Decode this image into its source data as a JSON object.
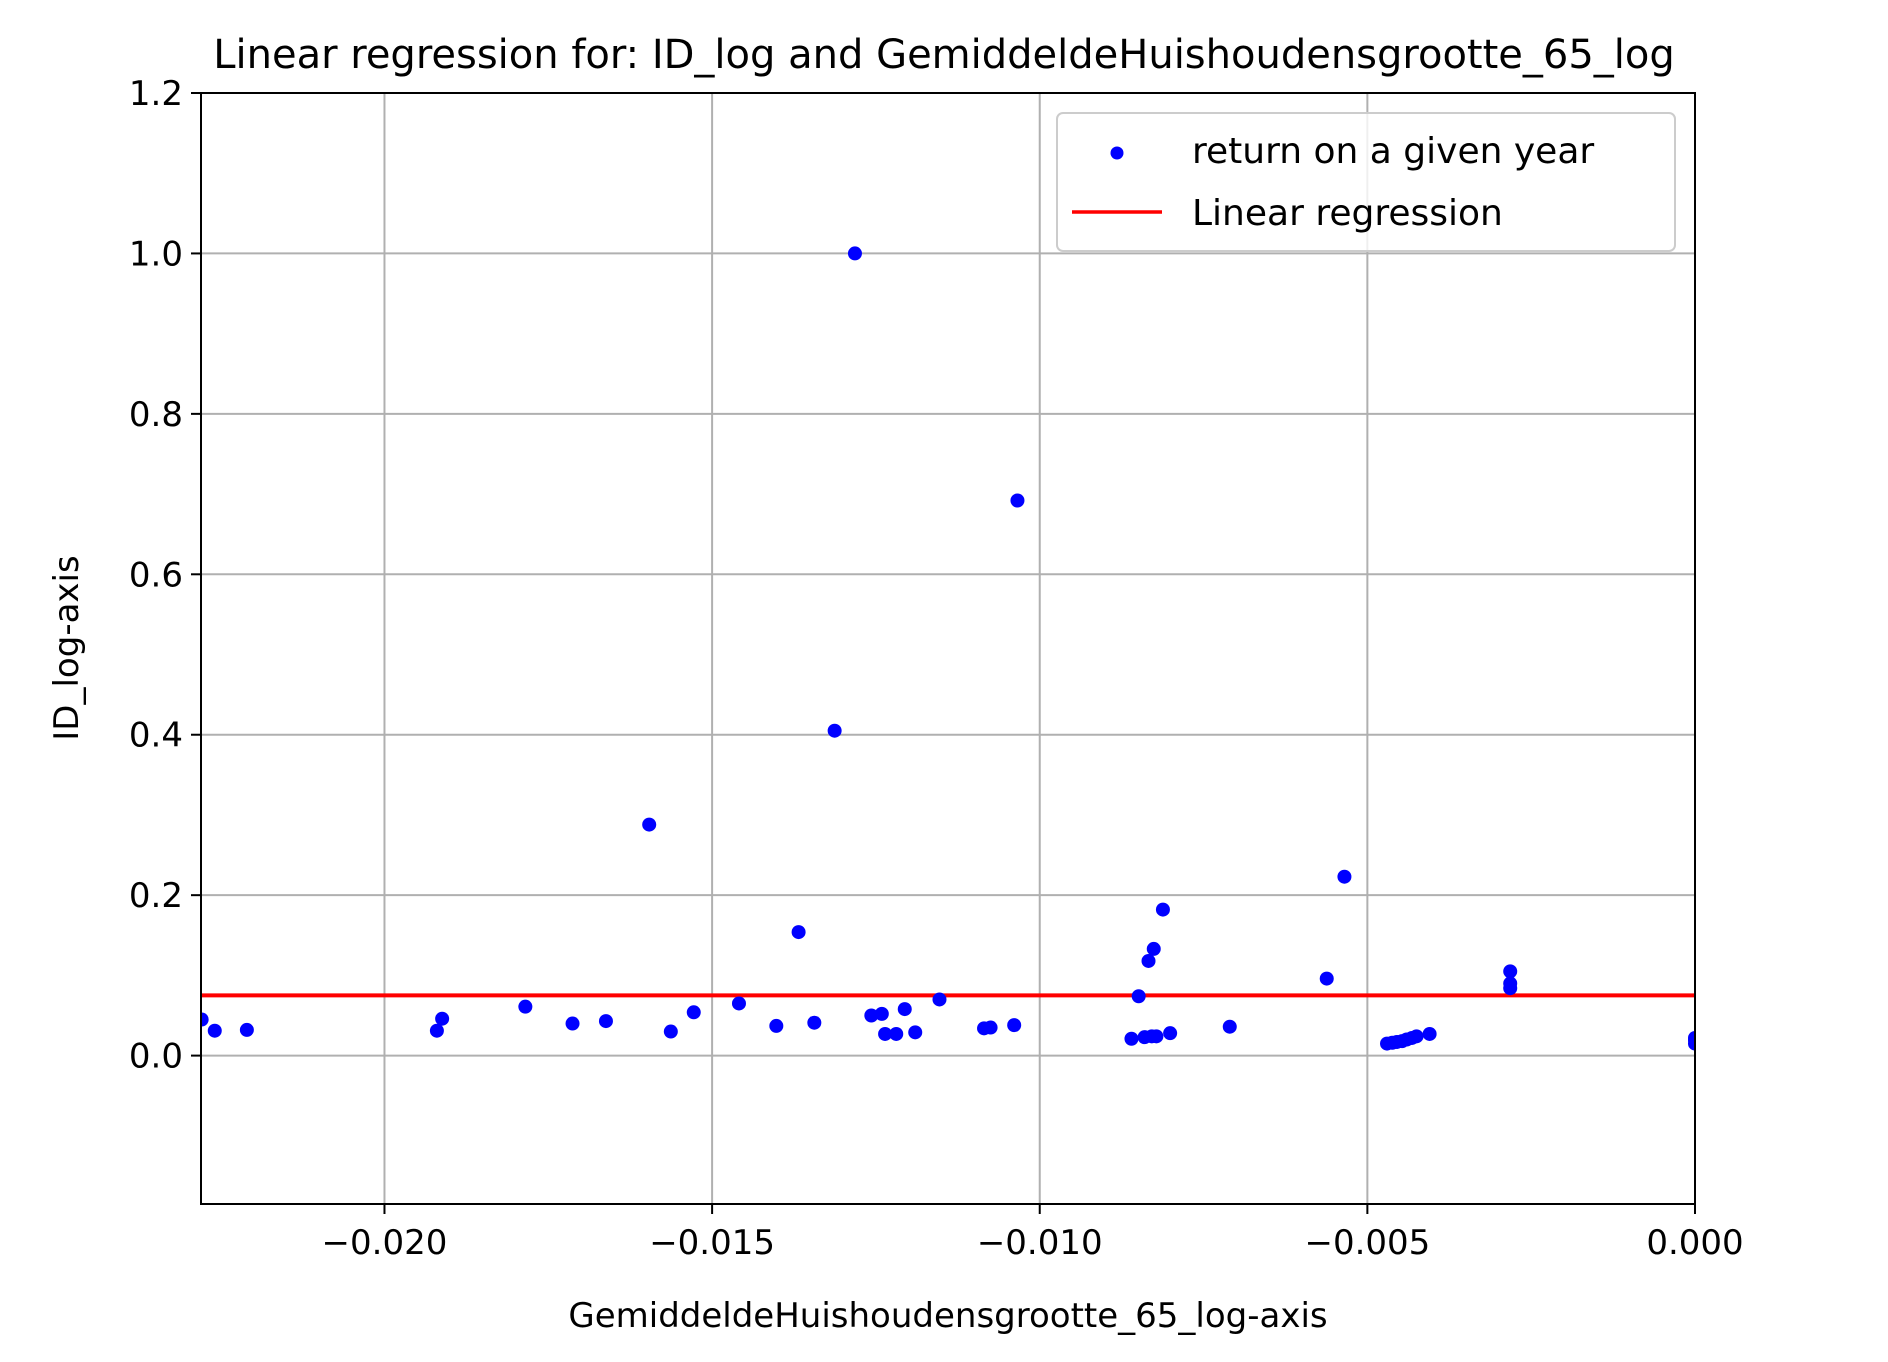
{
  "chart_data": {
    "type": "scatter",
    "title": "Linear regression for: ID_log and GemiddeldeHuishoudensgrootte_65_log",
    "xlabel": "GemiddeldeHuishoudensgrootte_65_log-axis",
    "ylabel": "ID_log-axis",
    "xlim": [
      -0.0228,
      0.0
    ],
    "ylim": [
      -0.185,
      1.2
    ],
    "xticks": [
      -0.02,
      -0.015,
      -0.01,
      -0.005,
      0.0
    ],
    "xtick_labels": [
      "−0.020",
      "−0.015",
      "−0.010",
      "−0.005",
      "0.000"
    ],
    "yticks": [
      0.0,
      0.2,
      0.4,
      0.6,
      0.8,
      1.0,
      1.2
    ],
    "ytick_labels": [
      "0.0",
      "0.2",
      "0.4",
      "0.6",
      "0.8",
      "1.0",
      "1.2"
    ],
    "grid": true,
    "legend_position": "top-right",
    "colors": {
      "points": "#0000ff",
      "line": "#ff0000",
      "grid": "#b0b0b0"
    },
    "series": [
      {
        "name": "return on a given year",
        "kind": "scatter",
        "points": [
          [
            -0.02279,
            0.045
          ],
          [
            -0.02259,
            0.031
          ],
          [
            -0.0221,
            0.032
          ],
          [
            -0.0192,
            0.031
          ],
          [
            -0.01912,
            0.046
          ],
          [
            -0.01785,
            0.061
          ],
          [
            -0.01713,
            0.04
          ],
          [
            -0.01662,
            0.043
          ],
          [
            -0.01596,
            0.288
          ],
          [
            -0.01563,
            0.03
          ],
          [
            -0.01528,
            0.054
          ],
          [
            -0.01459,
            0.065
          ],
          [
            -0.01402,
            0.037
          ],
          [
            -0.01368,
            0.154
          ],
          [
            -0.01344,
            0.041
          ],
          [
            -0.01313,
            0.405
          ],
          [
            -0.01282,
            1.0
          ],
          [
            -0.01257,
            0.05
          ],
          [
            -0.01241,
            0.052
          ],
          [
            -0.01236,
            0.027
          ],
          [
            -0.01219,
            0.027
          ],
          [
            -0.01206,
            0.058
          ],
          [
            -0.0119,
            0.029
          ],
          [
            -0.01153,
            0.07
          ],
          [
            -0.01085,
            0.034
          ],
          [
            -0.01075,
            0.035
          ],
          [
            -0.01039,
            0.038
          ],
          [
            -0.01034,
            0.692
          ],
          [
            -0.0086,
            0.021
          ],
          [
            -0.00849,
            0.074
          ],
          [
            -0.0084,
            0.023
          ],
          [
            -0.00834,
            0.118
          ],
          [
            -0.00829,
            0.024
          ],
          [
            -0.00826,
            0.133
          ],
          [
            -0.00822,
            0.024
          ],
          [
            -0.00812,
            0.182
          ],
          [
            -0.00801,
            0.028
          ],
          [
            -0.0071,
            0.036
          ],
          [
            -0.00562,
            0.096
          ],
          [
            -0.00535,
            0.223
          ],
          [
            -0.0047,
            0.015
          ],
          [
            -0.00462,
            0.016
          ],
          [
            -0.00455,
            0.017
          ],
          [
            -0.00447,
            0.018
          ],
          [
            -0.0044,
            0.02
          ],
          [
            -0.00432,
            0.022
          ],
          [
            -0.00425,
            0.024
          ],
          [
            -0.00405,
            0.027
          ],
          [
            -0.00282,
            0.105
          ],
          [
            -0.00282,
            0.09
          ],
          [
            -0.00282,
            0.084
          ],
          [
            0.0,
            0.015
          ],
          [
            0.0,
            0.019
          ],
          [
            0.0,
            0.022
          ]
        ]
      },
      {
        "name": "Linear regression",
        "kind": "line",
        "points": [
          [
            -0.0228,
            0.075
          ],
          [
            0.0,
            0.075
          ]
        ]
      }
    ]
  }
}
